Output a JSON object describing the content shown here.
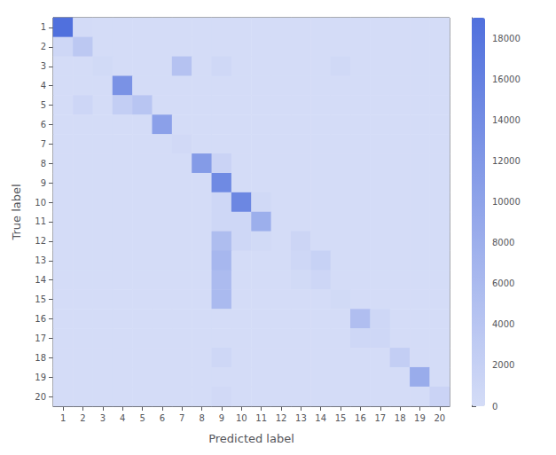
{
  "chart_data": {
    "type": "heatmap",
    "xlabel": "Predicted label",
    "ylabel": "True label",
    "x_categories": [
      "1",
      "2",
      "3",
      "4",
      "5",
      "6",
      "7",
      "8",
      "9",
      "10",
      "11",
      "12",
      "13",
      "14",
      "15",
      "16",
      "17",
      "18",
      "19",
      "20"
    ],
    "y_categories": [
      "1",
      "2",
      "3",
      "4",
      "5",
      "6",
      "7",
      "8",
      "9",
      "10",
      "11",
      "12",
      "13",
      "14",
      "15",
      "16",
      "17",
      "18",
      "19",
      "20"
    ],
    "matrix": [
      [
        19000,
        100,
        0,
        0,
        0,
        0,
        0,
        0,
        0,
        0,
        0,
        0,
        0,
        0,
        0,
        0,
        0,
        0,
        0,
        0
      ],
      [
        800,
        3500,
        0,
        0,
        0,
        0,
        0,
        0,
        0,
        0,
        0,
        0,
        0,
        0,
        0,
        0,
        0,
        0,
        0,
        0
      ],
      [
        0,
        0,
        400,
        0,
        0,
        0,
        4500,
        0,
        700,
        0,
        0,
        0,
        0,
        0,
        600,
        0,
        0,
        0,
        0,
        0
      ],
      [
        0,
        0,
        0,
        13000,
        0,
        0,
        0,
        0,
        0,
        0,
        0,
        0,
        0,
        0,
        0,
        0,
        0,
        0,
        0,
        0
      ],
      [
        0,
        1000,
        0,
        2500,
        4000,
        0,
        0,
        0,
        0,
        0,
        0,
        0,
        0,
        0,
        0,
        0,
        0,
        0,
        0,
        0
      ],
      [
        0,
        0,
        0,
        0,
        0,
        10500,
        0,
        0,
        0,
        0,
        0,
        0,
        0,
        0,
        0,
        0,
        0,
        0,
        0,
        0
      ],
      [
        0,
        0,
        0,
        0,
        0,
        0,
        500,
        0,
        0,
        0,
        0,
        0,
        0,
        0,
        0,
        0,
        0,
        0,
        0,
        0
      ],
      [
        0,
        0,
        0,
        0,
        0,
        0,
        0,
        11500,
        1500,
        0,
        0,
        0,
        0,
        0,
        0,
        0,
        0,
        0,
        0,
        0
      ],
      [
        0,
        0,
        0,
        0,
        0,
        0,
        0,
        0,
        14500,
        0,
        0,
        0,
        0,
        0,
        0,
        0,
        0,
        0,
        0,
        0
      ],
      [
        0,
        0,
        0,
        0,
        0,
        0,
        0,
        0,
        900,
        15000,
        600,
        0,
        0,
        0,
        0,
        0,
        0,
        0,
        0,
        0
      ],
      [
        0,
        0,
        0,
        0,
        0,
        0,
        0,
        0,
        800,
        900,
        8000,
        0,
        0,
        0,
        0,
        0,
        0,
        0,
        0,
        0
      ],
      [
        0,
        0,
        0,
        0,
        0,
        0,
        0,
        0,
        5500,
        800,
        400,
        0,
        1200,
        0,
        0,
        0,
        0,
        0,
        0,
        0
      ],
      [
        0,
        0,
        0,
        0,
        0,
        0,
        0,
        0,
        6500,
        0,
        0,
        0,
        900,
        1800,
        0,
        0,
        0,
        0,
        0,
        0
      ],
      [
        0,
        0,
        0,
        0,
        0,
        0,
        0,
        0,
        5800,
        0,
        0,
        0,
        400,
        1000,
        0,
        0,
        0,
        0,
        0,
        0
      ],
      [
        0,
        0,
        0,
        0,
        0,
        0,
        0,
        0,
        6000,
        0,
        0,
        0,
        0,
        0,
        400,
        0,
        0,
        0,
        0,
        0
      ],
      [
        0,
        0,
        0,
        0,
        0,
        0,
        0,
        0,
        0,
        0,
        0,
        0,
        0,
        0,
        0,
        5200,
        800,
        0,
        0,
        0
      ],
      [
        0,
        0,
        0,
        0,
        0,
        0,
        0,
        0,
        0,
        0,
        0,
        0,
        0,
        0,
        0,
        900,
        800,
        0,
        0,
        0
      ],
      [
        0,
        0,
        0,
        0,
        0,
        0,
        0,
        0,
        900,
        0,
        0,
        0,
        0,
        0,
        0,
        0,
        0,
        2500,
        0,
        0
      ],
      [
        0,
        0,
        0,
        0,
        0,
        0,
        0,
        0,
        0,
        0,
        0,
        0,
        0,
        0,
        0,
        0,
        0,
        0,
        8500,
        0
      ],
      [
        0,
        0,
        0,
        0,
        0,
        0,
        0,
        0,
        500,
        0,
        0,
        0,
        0,
        0,
        0,
        0,
        0,
        0,
        0,
        1500
      ]
    ],
    "colorbar_range": [
      0,
      19000
    ],
    "colorbar_ticks": [
      0,
      2000,
      4000,
      6000,
      8000,
      10000,
      12000,
      14000,
      16000,
      18000
    ]
  }
}
